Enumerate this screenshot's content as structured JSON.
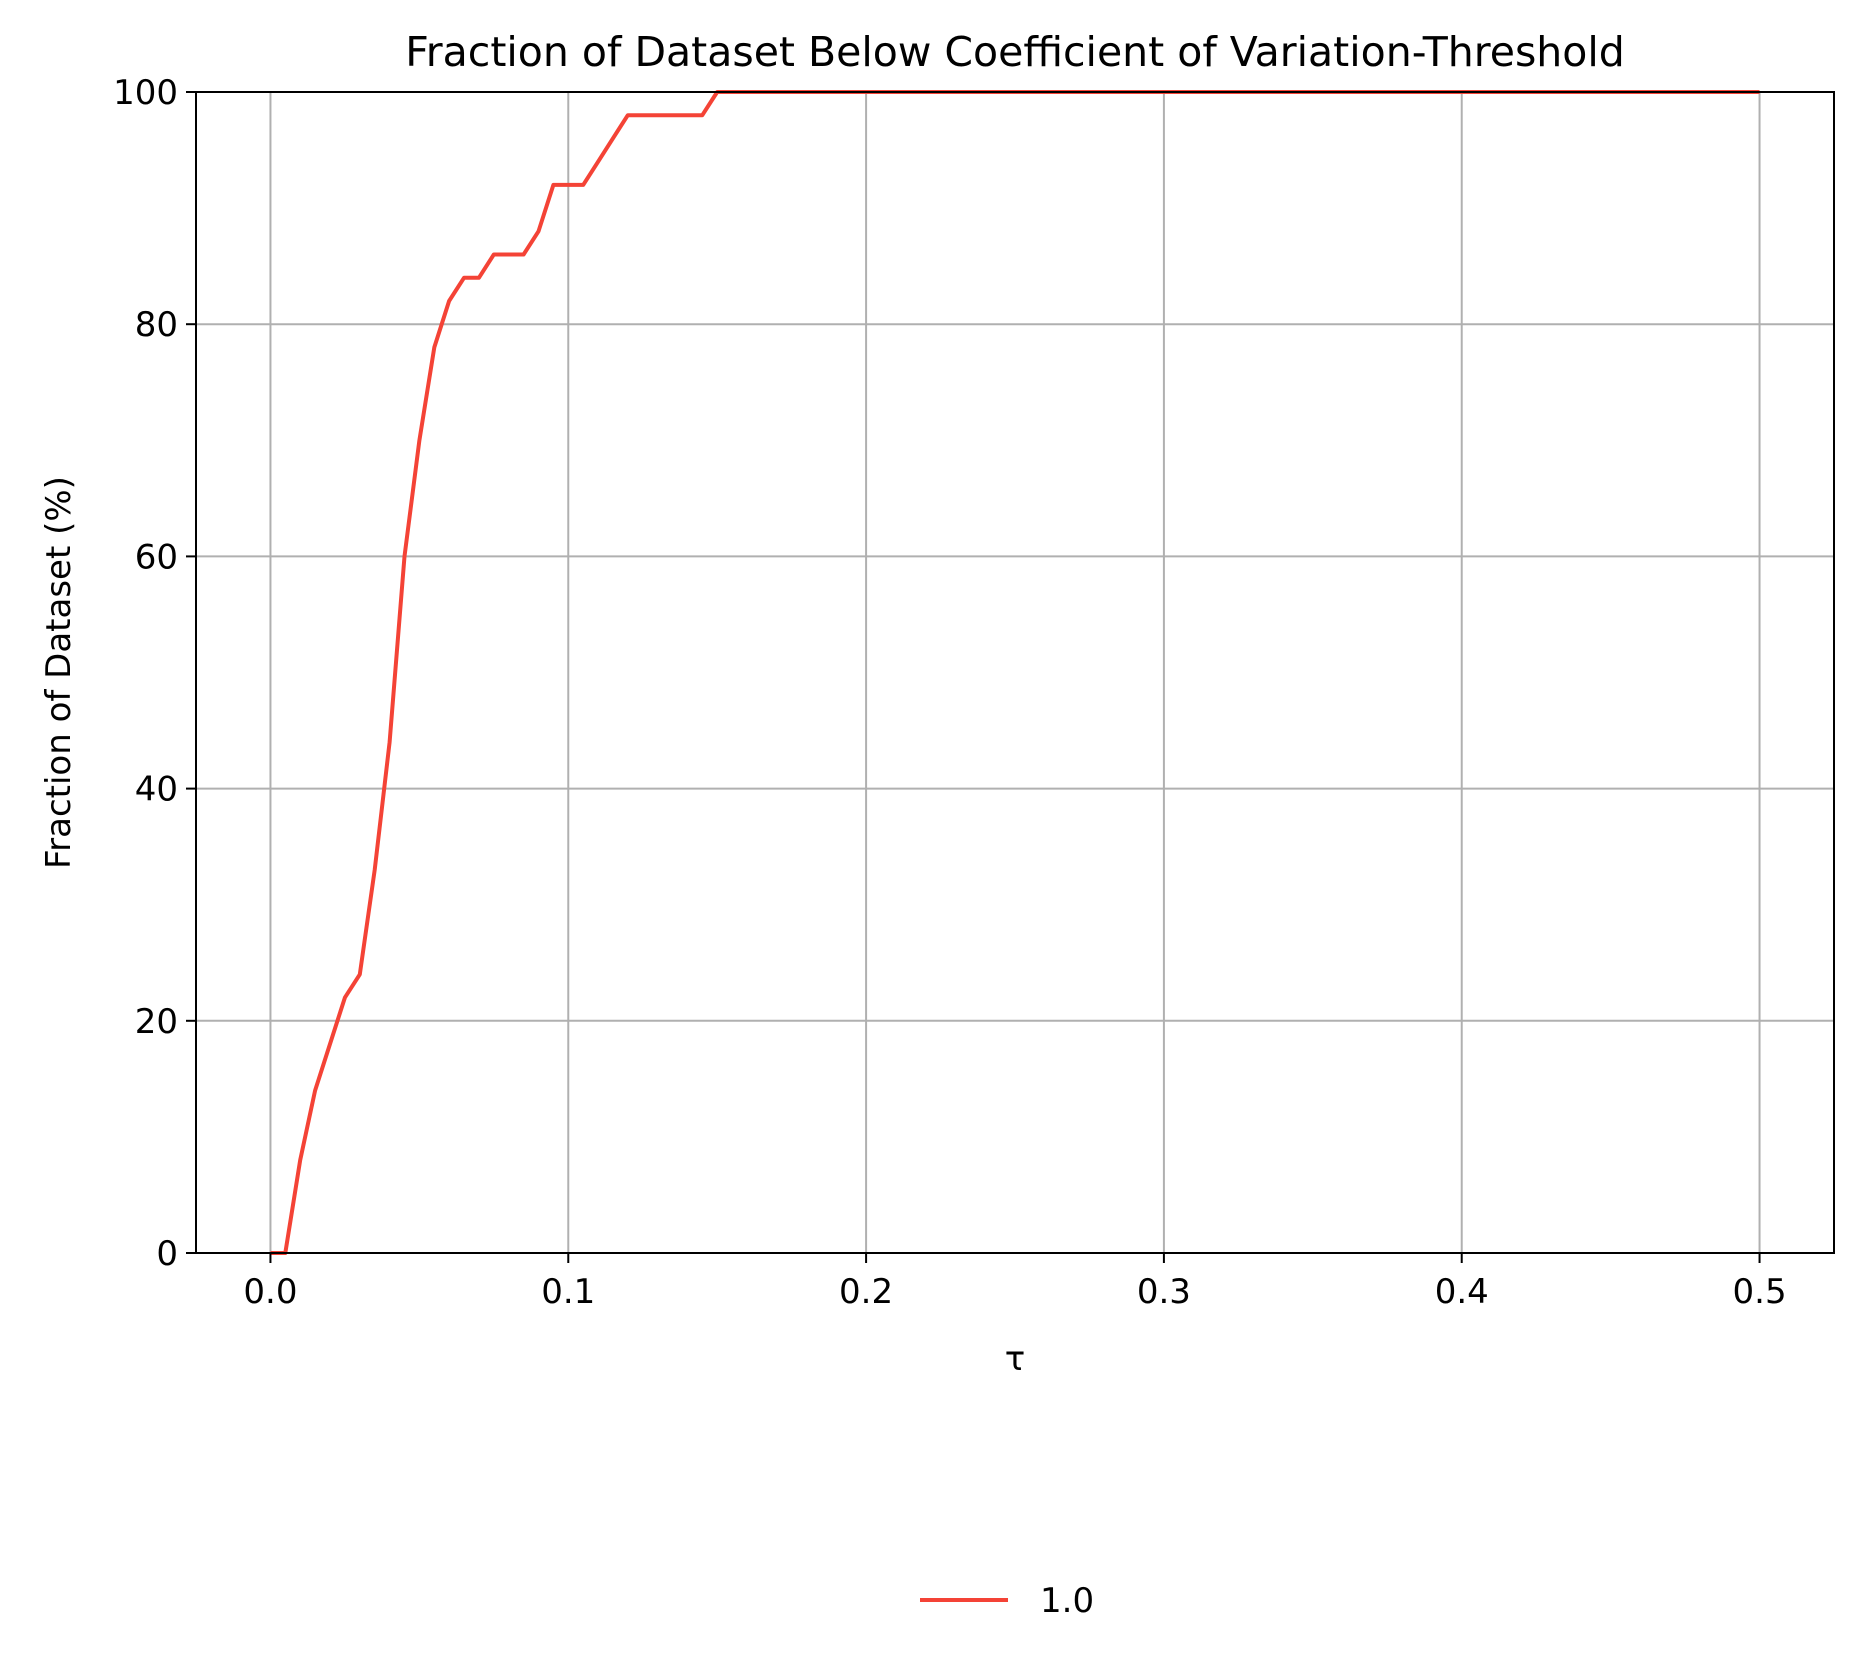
{
  "chart_data": {
    "type": "line",
    "title": "Fraction of Dataset Below Coefficient of Variation-Threshold",
    "xlabel": "τ",
    "ylabel": "Fraction of Dataset (%)",
    "xlim": [
      -0.025,
      0.525
    ],
    "ylim": [
      0,
      100
    ],
    "xticks": [
      0.0,
      0.1,
      0.2,
      0.3,
      0.4,
      0.5
    ],
    "xtick_labels": [
      "0.0",
      "0.1",
      "0.2",
      "0.3",
      "0.4",
      "0.5"
    ],
    "yticks": [
      0,
      20,
      40,
      60,
      80,
      100
    ],
    "ytick_labels": [
      "0",
      "20",
      "40",
      "60",
      "80",
      "100"
    ],
    "grid": true,
    "legend": {
      "placement": "bottom-center",
      "entries": [
        "1.0"
      ]
    },
    "series": [
      {
        "name": "1.0",
        "color": "#f44336",
        "x": [
          0.0,
          0.005,
          0.01,
          0.015,
          0.02,
          0.025,
          0.03,
          0.035,
          0.04,
          0.045,
          0.05,
          0.055,
          0.06,
          0.065,
          0.07,
          0.075,
          0.08,
          0.085,
          0.09,
          0.095,
          0.1,
          0.105,
          0.11,
          0.115,
          0.12,
          0.125,
          0.13,
          0.135,
          0.14,
          0.145,
          0.15,
          0.155,
          0.2,
          0.3,
          0.4,
          0.5
        ],
        "values": [
          0,
          0,
          8,
          14,
          18,
          22,
          24,
          33,
          44,
          60,
          70,
          78,
          82,
          84,
          84,
          86,
          86,
          86,
          88,
          92,
          92,
          92,
          94,
          96,
          98,
          98,
          98,
          98,
          98,
          98,
          100,
          100,
          100,
          100,
          100,
          100
        ]
      }
    ]
  }
}
